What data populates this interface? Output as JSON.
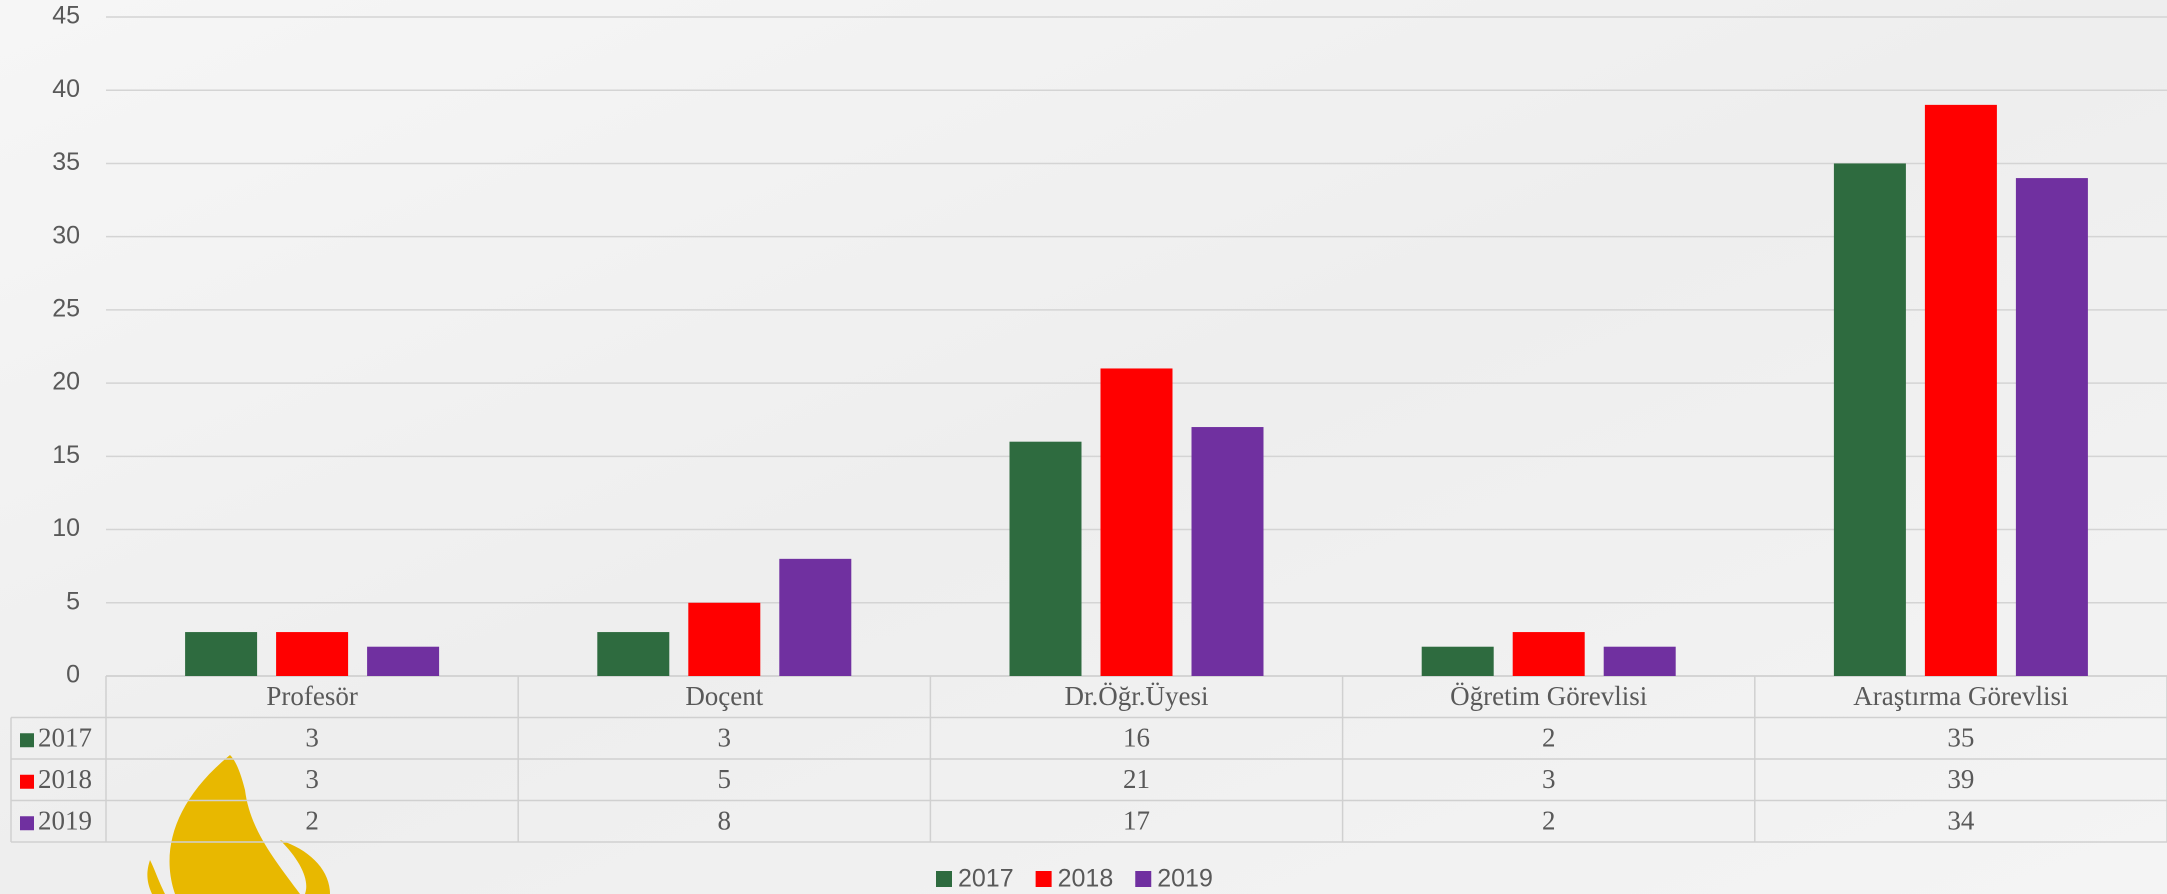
{
  "chart_data": {
    "type": "bar",
    "categories": [
      "Profesör",
      "Doçent",
      "Dr.Öğr.Üyesi",
      "Öğretim Görevlisi",
      "Araştırma Görevlisi"
    ],
    "series": [
      {
        "name": "2017",
        "color": "#2e6b3f",
        "values": [
          3,
          3,
          16,
          2,
          35
        ]
      },
      {
        "name": "2018",
        "color": "#ff0000",
        "values": [
          3,
          5,
          21,
          3,
          39
        ]
      },
      {
        "name": "2019",
        "color": "#7030a0",
        "values": [
          2,
          8,
          17,
          2,
          34
        ]
      }
    ],
    "ylim": [
      0,
      45
    ],
    "yticks": [
      0,
      5,
      10,
      15,
      20,
      25,
      30,
      35,
      40,
      45
    ],
    "grid": true,
    "legend": "bottom"
  }
}
